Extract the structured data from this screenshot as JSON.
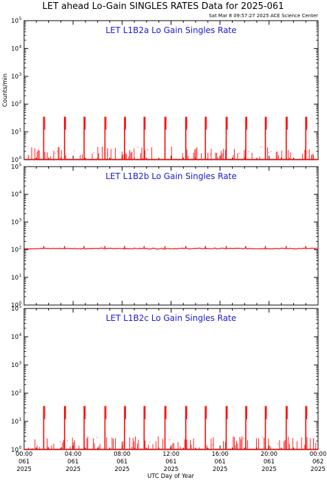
{
  "header": {
    "title": "LET ahead Lo-Gain SINGLES RATES Data for 2025-061",
    "subtitle": "Sat Mar  8 09:57:27 2025 ACE Science Center"
  },
  "chart_data": [
    {
      "type": "line",
      "title": "LET L1B2a Lo Gain Singles Rate",
      "ylabel": "Counts/min",
      "yscale": "log",
      "ylim": [
        1,
        100000
      ],
      "ytick_labels": [
        "10^0",
        "10^1",
        "10^2",
        "10^3",
        "10^4",
        "10^5"
      ],
      "color": "#ff0000",
      "baseline": 1,
      "spike_hours": [
        1.6,
        3.3,
        4.9,
        6.6,
        8.2,
        9.8,
        11.5,
        13.2,
        14.8,
        16.5,
        18.1,
        19.7,
        21.4,
        23.0
      ],
      "spike_peak": 35,
      "spike_floor": 12,
      "noise_max": 3
    },
    {
      "type": "line",
      "title": "LET L1B2b Lo Gain Singles Rate",
      "ylabel": "",
      "yscale": "log",
      "ylim": [
        1,
        100000
      ],
      "ytick_labels": [
        "10^0",
        "10^1",
        "10^2",
        "10^3",
        "10^4",
        "10^5"
      ],
      "color": "#ff0000",
      "baseline": 110,
      "spike_hours": [
        1.6,
        3.3,
        4.9,
        6.6,
        8.2,
        9.8,
        11.5,
        13.2,
        14.8,
        16.5,
        18.1,
        19.7,
        21.4,
        23.0
      ],
      "spike_peak": 135,
      "spike_floor": 110,
      "noise_max": 120
    },
    {
      "type": "line",
      "title": "LET L1B2c Lo Gain Singles Rate",
      "ylabel": "",
      "yscale": "log",
      "ylim": [
        1,
        100000
      ],
      "ytick_labels": [
        "10^0",
        "10^1",
        "10^2",
        "10^3",
        "10^4",
        "10^5"
      ],
      "color": "#ff0000",
      "baseline": 1,
      "spike_hours": [
        1.6,
        3.3,
        4.9,
        6.6,
        8.2,
        9.8,
        11.5,
        13.2,
        14.8,
        16.5,
        18.1,
        19.7,
        21.4,
        23.0
      ],
      "spike_peak": 35,
      "spike_floor": 12,
      "noise_max": 3
    }
  ],
  "x_axis": {
    "label": "UTC Day of Year",
    "xlim": [
      0,
      24
    ],
    "ticks": [
      {
        "hour": 0,
        "time": "00:00",
        "doy": "061",
        "year": "2025"
      },
      {
        "hour": 4,
        "time": "04:00",
        "doy": "061",
        "year": "2025"
      },
      {
        "hour": 8,
        "time": "08:00",
        "doy": "061",
        "year": "2025"
      },
      {
        "hour": 12,
        "time": "12:00",
        "doy": "061",
        "year": "2025"
      },
      {
        "hour": 16,
        "time": "16:00",
        "doy": "061",
        "year": "2025"
      },
      {
        "hour": 20,
        "time": "20:00",
        "doy": "061",
        "year": "2025"
      },
      {
        "hour": 24,
        "time": "00:00",
        "doy": "062",
        "year": "2025"
      }
    ]
  }
}
